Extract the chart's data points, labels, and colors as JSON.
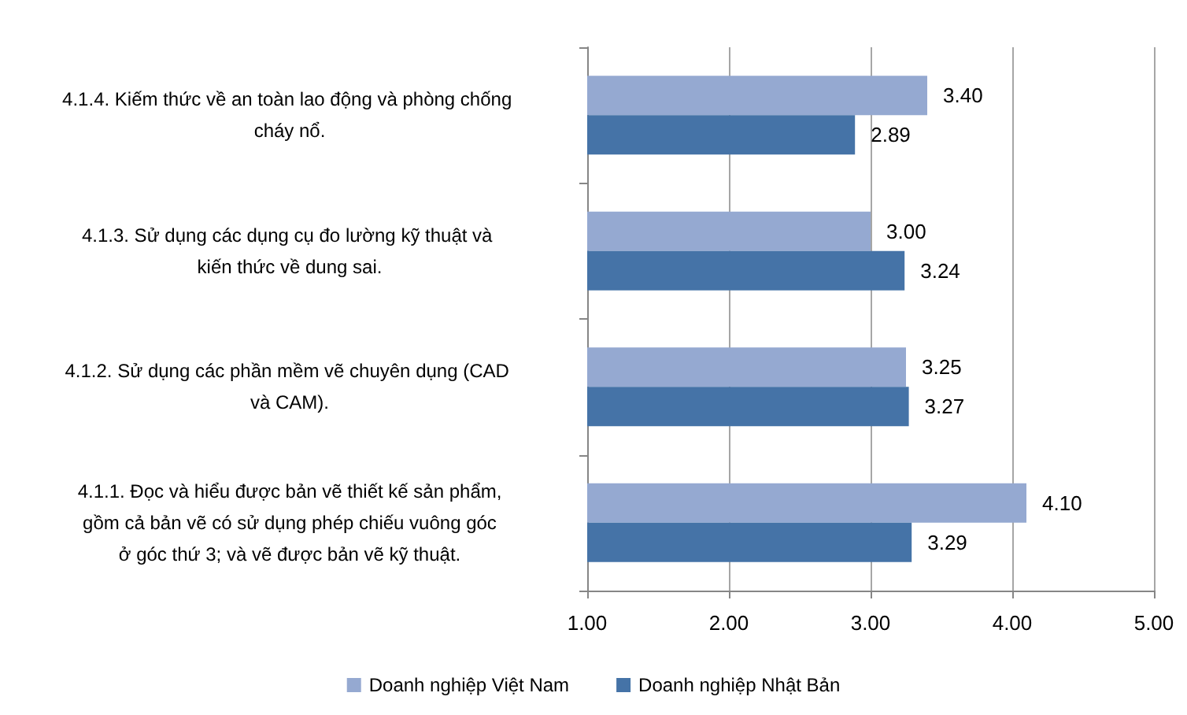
{
  "chart_data": {
    "type": "bar",
    "orientation": "horizontal",
    "categories": [
      "4.1.4. Kiếm thức về an toàn lao động và phòng chống cháy nổ.",
      "4.1.3. Sử dụng các dụng cụ đo lường kỹ thuật và kiến thức về dung sai.",
      "4.1.2. Sử dụng các phần mềm vẽ chuyên dụng (CAD và CAM).",
      "4.1.1. Đọc và hiểu được bản vẽ thiết kế sản phẩm, gồm cả bản vẽ có sử dụng phép chiếu vuông góc ở góc thứ 3; và vẽ được bản vẽ kỹ thuật."
    ],
    "series": [
      {
        "name": "Doanh nghiệp Việt Nam",
        "color": "#95a9d1",
        "values": [
          3.4,
          3.0,
          3.25,
          4.1
        ],
        "value_labels": [
          "3.40",
          "3.00",
          "3.25",
          "4.10"
        ]
      },
      {
        "name": "Doanh nghiệp Nhật Bản",
        "color": "#4573a7",
        "values": [
          2.89,
          3.24,
          3.27,
          3.29
        ],
        "value_labels": [
          "2.89",
          "3.24",
          "3.27",
          "3.29"
        ]
      }
    ],
    "xlim": [
      1,
      5
    ],
    "xticks": [
      {
        "value": 1,
        "label": "1.00"
      },
      {
        "value": 2,
        "label": "2.00"
      },
      {
        "value": 3,
        "label": "3.00"
      },
      {
        "value": 4,
        "label": "4.00"
      },
      {
        "value": 5,
        "label": "5.00"
      }
    ],
    "grid": "x",
    "legend": "bottom"
  }
}
